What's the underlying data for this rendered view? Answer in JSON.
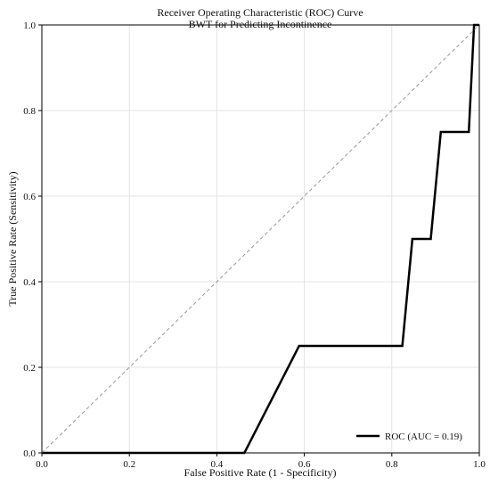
{
  "chart_data": {
    "type": "line",
    "title": "Receiver Operating Characteristic (ROC) Curve",
    "subtitle": "BWT for Predicting Incontinence",
    "xlabel": "False Positive Rate (1 - Specificity)",
    "ylabel": "True Positive Rate (Sensitivity)",
    "xlim": [
      0.0,
      1.0
    ],
    "ylim": [
      0.0,
      1.0
    ],
    "x_ticks": [
      "0.0",
      "0.2",
      "0.4",
      "0.6",
      "0.8",
      "1.0"
    ],
    "y_ticks": [
      "0.0",
      "0.2",
      "0.4",
      "0.6",
      "0.8",
      "1.0"
    ],
    "grid": true,
    "legend_position": "bottom-right",
    "series": [
      {
        "name": "ROC (AUC = 0.19)",
        "color": "#000000",
        "line_style": "solid",
        "x": [
          0.0,
          0.463,
          0.588,
          0.824,
          0.847,
          0.889,
          0.912,
          0.976,
          0.988,
          1.0
        ],
        "y": [
          0.0,
          0.0,
          0.25,
          0.25,
          0.5,
          0.5,
          0.75,
          0.75,
          1.0,
          1.0
        ]
      },
      {
        "name": "",
        "color": "#999999",
        "line_style": "dashed",
        "x": [
          0.0,
          1.0
        ],
        "y": [
          0.0,
          1.0
        ]
      }
    ]
  }
}
